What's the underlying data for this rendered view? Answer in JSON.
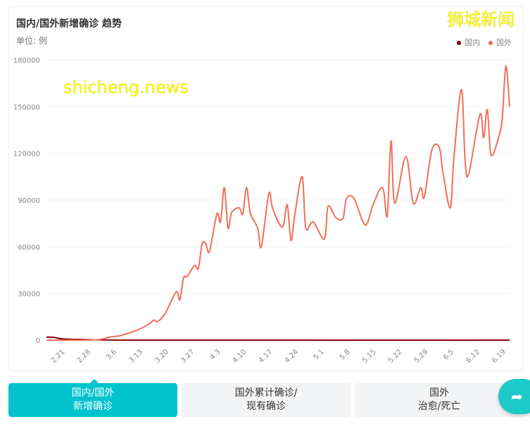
{
  "header": {
    "title": "国内/国外新增确诊 趋势",
    "unit": "单位: 例"
  },
  "watermarks": {
    "top": "狮城新闻",
    "bottom": "shicheng.news"
  },
  "tabs": [
    {
      "line1": "国内/国外",
      "line2": "新增确诊",
      "active": true
    },
    {
      "line1": "国外累计确诊/",
      "line2": "现有确诊",
      "active": false
    },
    {
      "line1": "国外",
      "line2": "治愈/死亡",
      "active": false
    }
  ],
  "share": {
    "icon": "share-icon"
  },
  "chart_data": {
    "type": "line",
    "title": "国内/国外新增确诊 趋势",
    "ylabel": "单位: 例",
    "xrange": [
      "2.16",
      "6.20"
    ],
    "ylim": [
      0,
      180000
    ],
    "yticks": [
      "0",
      "30000",
      "60000",
      "90000",
      "120000",
      "150000",
      "180000"
    ],
    "xticks": [
      "2.21",
      "2.28",
      "3.6",
      "3.13",
      "3.20",
      "3.27",
      "4.3",
      "4.10",
      "4.17",
      "4.24",
      "5.1",
      "5.8",
      "5.15",
      "5.22",
      "5.29",
      "6.5",
      "6.12",
      "6.19"
    ],
    "legend": {
      "position": "top-right",
      "entries": [
        "国内",
        "国外"
      ]
    },
    "series": [
      {
        "name": "国内",
        "color": "#8b0000",
        "points": [
          [
            "2.16",
            2000
          ],
          [
            "2.18",
            1800
          ],
          [
            "2.20",
            900
          ],
          [
            "2.23",
            500
          ],
          [
            "2.26",
            400
          ],
          [
            "3.1",
            200
          ],
          [
            "3.10",
            30
          ],
          [
            "4.10",
            40
          ],
          [
            "5.10",
            20
          ],
          [
            "6.20",
            30
          ]
        ]
      },
      {
        "name": "国外",
        "color": "#f0705a",
        "points": [
          [
            "2.16",
            0
          ],
          [
            "2.29",
            200
          ],
          [
            "3.4",
            2000
          ],
          [
            "3.7",
            3000
          ],
          [
            "3.12",
            7000
          ],
          [
            "3.15",
            11000
          ],
          [
            "3.16",
            13000
          ],
          [
            "3.17",
            12000
          ],
          [
            "3.19",
            17000
          ],
          [
            "3.22",
            31000
          ],
          [
            "3.23",
            26000
          ],
          [
            "3.24",
            40000
          ],
          [
            "3.25",
            41000
          ],
          [
            "3.27",
            48000
          ],
          [
            "3.28",
            46000
          ],
          [
            "3.29",
            62000
          ],
          [
            "3.30",
            62000
          ],
          [
            "3.31",
            57000
          ],
          [
            "4.2",
            81000
          ],
          [
            "4.3",
            76000
          ],
          [
            "4.4",
            98000
          ],
          [
            "4.5",
            72000
          ],
          [
            "4.6",
            82000
          ],
          [
            "4.8",
            85000
          ],
          [
            "4.9",
            81000
          ],
          [
            "4.10",
            98000
          ],
          [
            "4.11",
            82000
          ],
          [
            "4.13",
            72000
          ],
          [
            "4.14",
            60000
          ],
          [
            "4.16",
            94000
          ],
          [
            "4.17",
            85000
          ],
          [
            "4.19",
            74000
          ],
          [
            "4.20",
            74000
          ],
          [
            "4.21",
            87000
          ],
          [
            "4.22",
            64000
          ],
          [
            "4.23",
            80000
          ],
          [
            "4.25",
            105000
          ],
          [
            "4.26",
            72000
          ],
          [
            "4.28",
            76000
          ],
          [
            "5.1",
            65000
          ],
          [
            "5.2",
            86000
          ],
          [
            "5.4",
            79000
          ],
          [
            "5.6",
            78000
          ],
          [
            "5.7",
            91000
          ],
          [
            "5.9",
            91000
          ],
          [
            "5.12",
            74000
          ],
          [
            "5.14",
            86000
          ],
          [
            "5.16",
            97000
          ],
          [
            "5.17",
            96000
          ],
          [
            "5.18",
            80000
          ],
          [
            "5.19",
            128000
          ],
          [
            "5.20",
            88000
          ],
          [
            "5.23",
            118000
          ],
          [
            "5.25",
            88000
          ],
          [
            "5.27",
            98000
          ],
          [
            "5.28",
            92000
          ],
          [
            "5.30",
            122000
          ],
          [
            "6.1",
            124000
          ],
          [
            "6.2",
            108000
          ],
          [
            "6.4",
            85000
          ],
          [
            "6.5",
            118000
          ],
          [
            "6.7",
            161000
          ],
          [
            "6.8",
            115000
          ],
          [
            "6.9",
            107000
          ],
          [
            "6.12",
            145000
          ],
          [
            "6.13",
            130000
          ],
          [
            "6.14",
            148000
          ],
          [
            "6.15",
            119000
          ],
          [
            "6.17",
            130000
          ],
          [
            "6.18",
            142000
          ],
          [
            "6.19",
            176000
          ],
          [
            "6.20",
            150000
          ]
        ]
      }
    ]
  }
}
